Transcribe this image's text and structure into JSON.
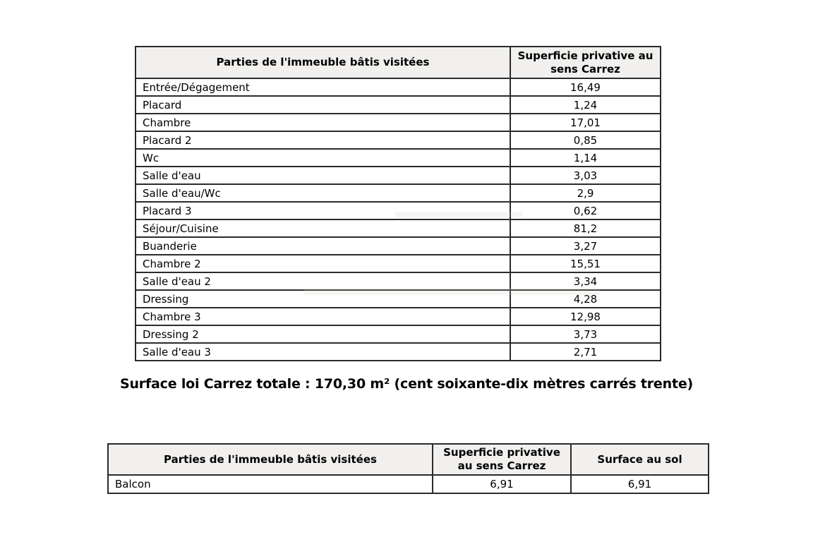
{
  "colors": {
    "header_bg": "#f1f0ee",
    "border": "#2b2b2b",
    "text": "#000000",
    "page_bg": "#ffffff"
  },
  "table1": {
    "headers": [
      "Parties de l'immeuble bâtis visitées",
      "Superficie privative au sens Carrez"
    ],
    "rows": [
      [
        "Entrée/Dégagement",
        "16,49"
      ],
      [
        "Placard",
        "1,24"
      ],
      [
        "Chambre",
        "17,01"
      ],
      [
        "Placard 2",
        "0,85"
      ],
      [
        "Wc",
        "1,14"
      ],
      [
        "Salle d'eau",
        "3,03"
      ],
      [
        "Salle d'eau/Wc",
        "2,9"
      ],
      [
        "Placard 3",
        "0,62"
      ],
      [
        "Séjour/Cuisine",
        "81,2"
      ],
      [
        "Buanderie",
        "3,27"
      ],
      [
        "Chambre 2",
        "15,51"
      ],
      [
        "Salle d'eau 2",
        "3,34"
      ],
      [
        "Dressing",
        "4,28"
      ],
      [
        "Chambre 3",
        "12,98"
      ],
      [
        "Dressing 2",
        "3,73"
      ],
      [
        "Salle d'eau 3",
        "2,71"
      ]
    ]
  },
  "total_line": "Surface loi Carrez totale : 170,30 m² (cent soixante-dix mètres carrés trente)",
  "table2": {
    "headers": [
      "Parties de l'immeuble bâtis visitées",
      "Superficie privative au sens Carrez",
      "Surface au sol"
    ],
    "rows": [
      [
        "Balcon",
        "6,91",
        "6,91"
      ]
    ]
  }
}
